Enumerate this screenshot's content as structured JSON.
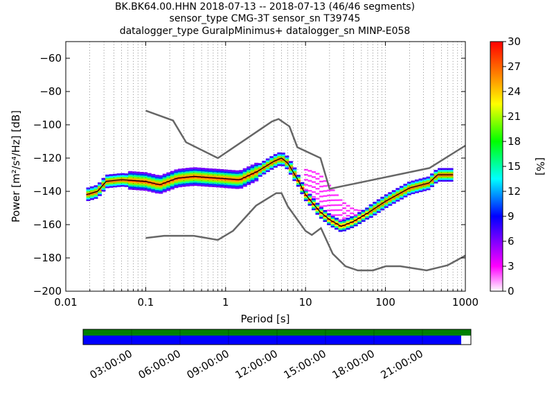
{
  "header": {
    "line1": "BK.BK64.00.HHN   2018-07-13 -- 2018-07-13  (46/46 segments)",
    "line2": "sensor_type CMG-3T sensor_sn T39745",
    "line3": "datalogger_type GuralpMinimus+ datalogger_sn MINP-E058"
  },
  "chart_data": [
    {
      "type": "heatmap",
      "xlabel": "Period [s]",
      "ylabel": "Power [m²/s⁴/Hz] [dB]",
      "xscale": "log",
      "xlim": [
        0.01,
        1000
      ],
      "ylim": [
        -200,
        -50
      ],
      "x_ticks": [
        "0.01",
        "0.1",
        "1",
        "10",
        "100",
        "1000"
      ],
      "y_ticks": [
        "−60",
        "−80",
        "−100",
        "−120",
        "−140",
        "−160",
        "−180",
        "−200"
      ],
      "grid": "dotted",
      "colorbar": {
        "label": "[%]",
        "range": [
          0,
          30
        ],
        "ticks": [
          "0",
          "3",
          "6",
          "9",
          "12",
          "15",
          "18",
          "21",
          "24",
          "27",
          "30"
        ],
        "colormap": [
          "#ffffff",
          "#ff00ff",
          "#8000ff",
          "#0000ff",
          "#00ffff",
          "#00ff00",
          "#ffff00",
          "#ff8000",
          "#ff0000"
        ]
      },
      "series": [
        {
          "name": "NHNM",
          "x": [
            0.1,
            0.22,
            0.32,
            0.8,
            3.8,
            4.6,
            6.3,
            7.9,
            15.4,
            20,
            354.8,
            1000
          ],
          "y": [
            -91.5,
            -97.4,
            -110.5,
            -120,
            -98,
            -96.5,
            -101,
            -113.5,
            -120,
            -138.5,
            -126,
            -112.5
          ]
        },
        {
          "name": "NLNM",
          "x": [
            0.1,
            0.17,
            0.4,
            0.8,
            1.24,
            2.4,
            4.3,
            5,
            6,
            10,
            12,
            15.6,
            21.9,
            31.6,
            45,
            70,
            101,
            154,
            328,
            600,
            1000
          ],
          "y": [
            -168,
            -166.7,
            -166.7,
            -169.2,
            -163.7,
            -148.6,
            -141.1,
            -141.1,
            -149,
            -163.8,
            -166.2,
            -162.1,
            -177.5,
            -185,
            -187.5,
            -187.5,
            -185,
            -185,
            -187.5,
            -184.4,
            -178.6
          ]
        },
        {
          "name": "mode",
          "x": [
            0.018,
            0.025,
            0.032,
            0.05,
            0.1,
            0.15,
            0.25,
            0.4,
            0.8,
            1.5,
            2.5,
            4,
            5,
            6,
            8,
            10,
            15,
            20,
            28,
            40,
            60,
            100,
            200,
            350,
            450,
            700
          ],
          "y": [
            -142,
            -140,
            -134,
            -133,
            -134,
            -136,
            -132,
            -131,
            -132,
            -133,
            -128,
            -122,
            -120,
            -123,
            -133,
            -142,
            -152,
            -157,
            -161,
            -158,
            -153,
            -146,
            -138,
            -135,
            -130,
            -130
          ]
        },
        {
          "name": "daily_upper",
          "x": [
            10,
            12,
            15,
            20,
            28,
            40,
            55,
            70
          ],
          "y": [
            -127,
            -128,
            -130,
            -137,
            -146,
            -151,
            -152,
            -150
          ]
        }
      ]
    },
    {
      "type": "timeline",
      "x_ticks": [
        "03:00:00",
        "06:00:00",
        "09:00:00",
        "12:00:00",
        "15:00:00",
        "18:00:00",
        "21:00:00"
      ],
      "coverage_fraction": 0.975,
      "colors": {
        "top": "#008000",
        "bottom": "#0000ff"
      }
    }
  ]
}
